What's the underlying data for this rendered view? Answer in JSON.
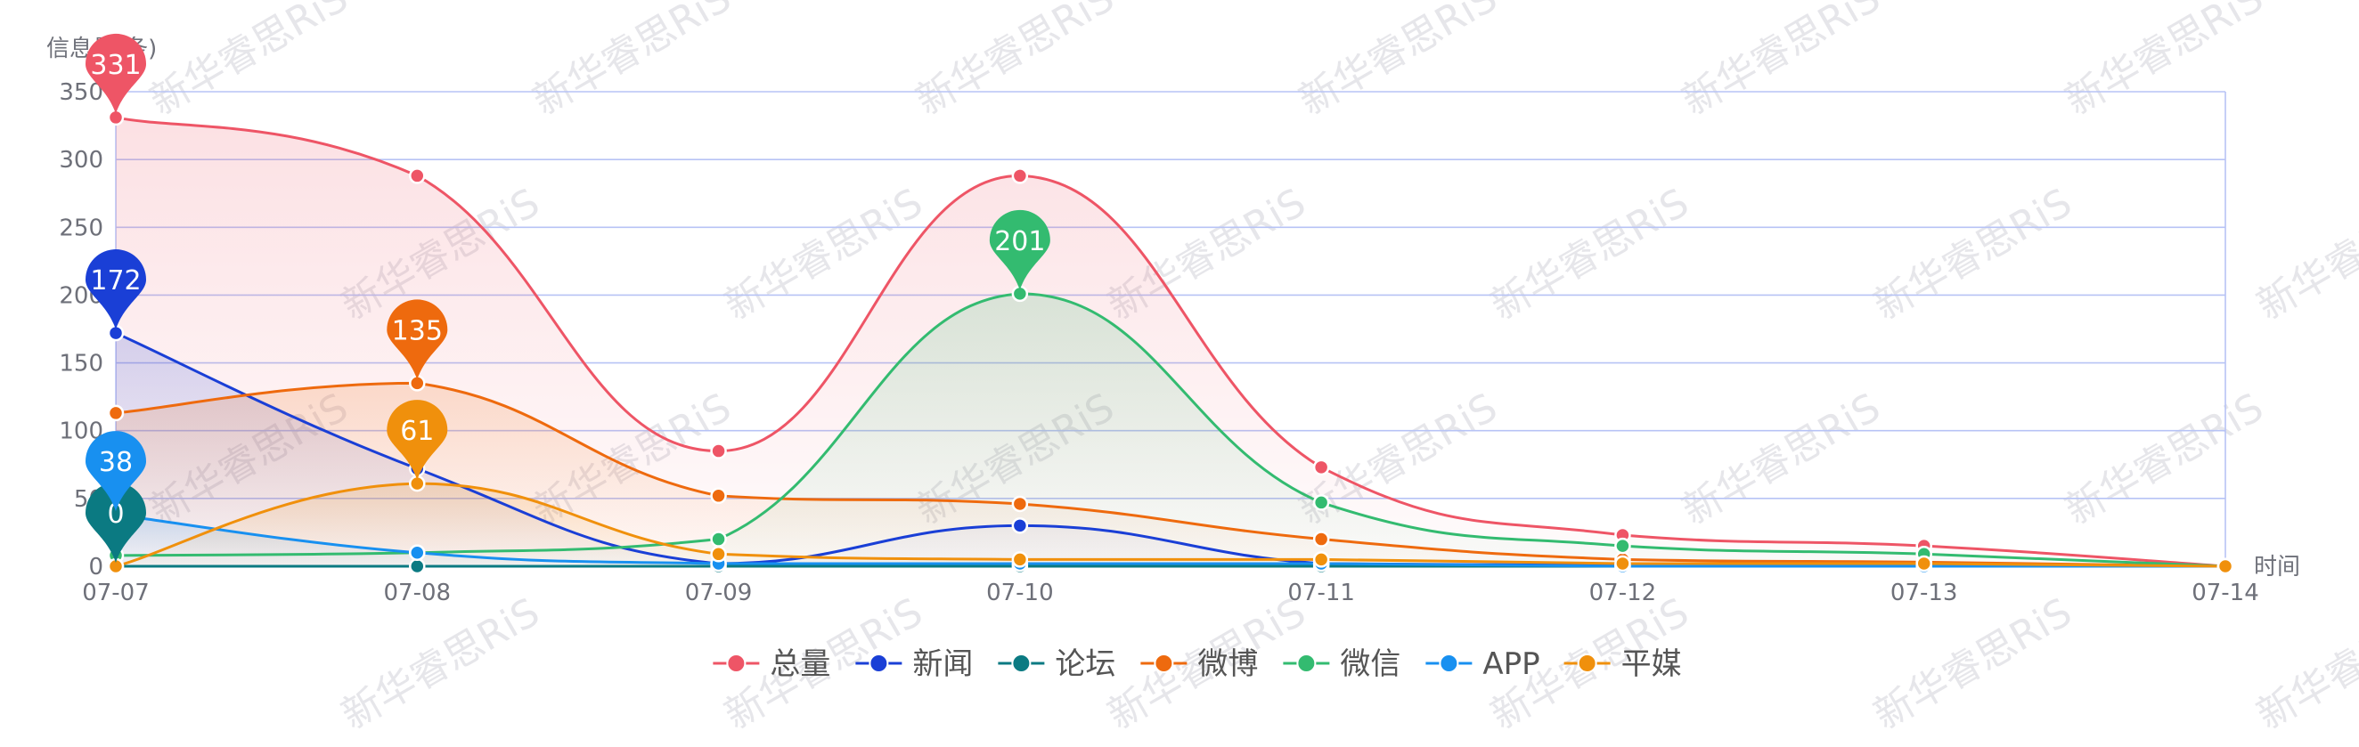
{
  "chart_data": {
    "type": "line",
    "smooth": true,
    "area": true,
    "ylabel": "信息量(条)",
    "xlabel": "时间",
    "ylim": [
      0,
      350
    ],
    "yticks": [
      0,
      50,
      100,
      150,
      200,
      250,
      300,
      350
    ],
    "categories": [
      "07-07",
      "07-08",
      "07-09",
      "07-10",
      "07-11",
      "07-12",
      "07-13",
      "07-14"
    ],
    "grid": true,
    "legend_position": "bottom",
    "watermark": "新华睿思RiS",
    "series": [
      {
        "name": "总量",
        "color": "#ee5566",
        "values": [
          331,
          288,
          85,
          288,
          73,
          23,
          15,
          0
        ],
        "max_label": "331"
      },
      {
        "name": "新闻",
        "color": "#1a3fd6",
        "values": [
          172,
          72,
          2,
          30,
          2,
          1,
          1,
          0
        ],
        "max_label": "172"
      },
      {
        "name": "论坛",
        "color": "#0b7a82",
        "values": [
          0,
          0,
          0,
          0,
          0,
          0,
          0,
          0
        ],
        "max_label": "0"
      },
      {
        "name": "微博",
        "color": "#ee6a0e",
        "values": [
          113,
          135,
          52,
          46,
          20,
          5,
          3,
          0
        ],
        "max_label": "135"
      },
      {
        "name": "微信",
        "color": "#33bb70",
        "values": [
          8,
          10,
          20,
          201,
          47,
          15,
          9,
          0
        ],
        "max_label": "201"
      },
      {
        "name": "APP",
        "color": "#1890f0",
        "values": [
          38,
          10,
          2,
          2,
          2,
          0,
          0,
          0
        ],
        "max_label": "38"
      },
      {
        "name": "平媒",
        "color": "#f0900c",
        "values": [
          0,
          61,
          9,
          5,
          5,
          2,
          2,
          0
        ],
        "max_label": "61"
      }
    ]
  }
}
